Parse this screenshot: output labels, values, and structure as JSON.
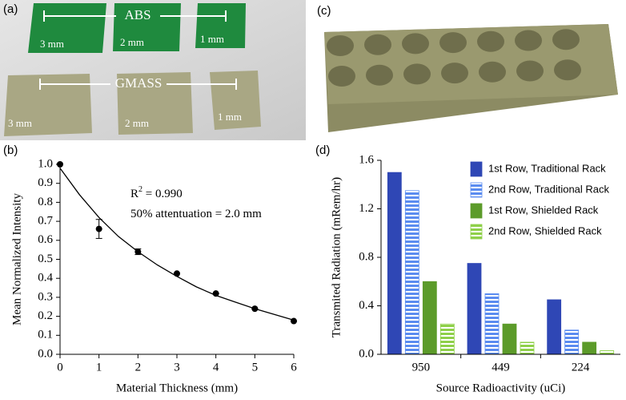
{
  "panels": {
    "a": "(a)",
    "b": "(b)",
    "c": "(c)",
    "d": "(d)"
  },
  "photo_a": {
    "abs": {
      "title": "ABS",
      "labels": [
        "3 mm",
        "2 mm",
        "1 mm"
      ]
    },
    "gmass": {
      "title": "GMASS",
      "labels": [
        "3 mm",
        "2 mm",
        "1 mm"
      ]
    }
  },
  "chart_data": [
    {
      "type": "scatter",
      "x_label": "Material Thickness (mm)",
      "y_label": "Mean Normalized Intensity",
      "annotations": [
        {
          "text": "R",
          "sup": "2",
          "rest": " = 0.990"
        },
        {
          "text": "50% attentuation = 2.0 mm"
        }
      ],
      "series": [
        {
          "x": [
            0,
            1,
            2,
            3,
            4,
            5,
            6
          ],
          "values": [
            1.0,
            0.66,
            0.54,
            0.425,
            0.32,
            0.24,
            0.175
          ],
          "errors": [
            0,
            0.05,
            0.015,
            0,
            0,
            0,
            0
          ],
          "color": "#000000",
          "marker": "circle"
        },
        {
          "x": [
            0,
            0.5,
            1,
            1.5,
            2,
            2.5,
            3,
            3.5,
            4,
            4.5,
            5,
            5.5,
            6
          ],
          "values": [
            0.98,
            0.84,
            0.72,
            0.62,
            0.54,
            0.47,
            0.41,
            0.355,
            0.31,
            0.275,
            0.24,
            0.21,
            0.18
          ],
          "color": "#000000",
          "marker": "line"
        }
      ],
      "xlim": [
        0,
        6
      ],
      "xticks": [
        0,
        1,
        2,
        3,
        4,
        5,
        6
      ],
      "ylim": [
        0,
        1.0
      ],
      "yticks": [
        {
          "value": 0,
          "label": "0.0"
        },
        0.1,
        0.2,
        0.3,
        0.4,
        0.5,
        0.6,
        0.7,
        0.8,
        0.9,
        {
          "value": 1.0,
          "label": "1.0"
        }
      ]
    },
    {
      "type": "bar",
      "x_label": "Source Radioactivity (uCi)",
      "y_label": "Transmited Radiation (mRem/hr)",
      "categories": [
        "950",
        "449",
        "224"
      ],
      "series": [
        {
          "name": "1st Row, Traditional Rack",
          "color": "#2f47b5",
          "values": [
            1.5,
            0.75,
            0.45
          ]
        },
        {
          "name": "2nd Row, Traditional Rack",
          "color": "#5b8cf0",
          "pattern": "stripes",
          "values": [
            1.35,
            0.5,
            0.2
          ]
        },
        {
          "name": "1st Row, Shielded Rack",
          "color": "#5c9b2a",
          "values": [
            0.6,
            0.25,
            0.1
          ]
        },
        {
          "name": "2nd Row, Shielded Rack",
          "color": "#8fd04a",
          "pattern": "stripes",
          "values": [
            0.25,
            0.1,
            0.03
          ]
        }
      ],
      "ylim": [
        0,
        1.6
      ],
      "yticks": [
        {
          "value": 0,
          "label": "0.0"
        },
        0.4,
        0.8,
        1.2,
        1.6
      ],
      "legend": "upper right"
    }
  ]
}
